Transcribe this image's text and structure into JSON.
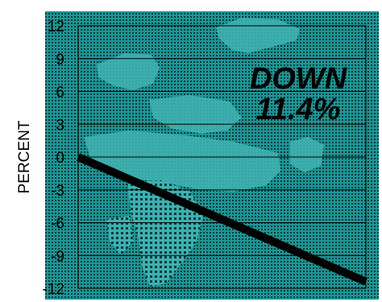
{
  "chart_data": {
    "type": "line",
    "ylabel": "PERCENT",
    "yticks": [
      12,
      9,
      6,
      3,
      0,
      -3,
      -6,
      -9,
      -12
    ],
    "ytick_labels": [
      "12",
      "9",
      "6",
      "3",
      "0",
      "-3",
      "-6",
      "-9",
      "-12"
    ],
    "ylim": [
      -12,
      12
    ],
    "grid": true,
    "series": [
      {
        "x": [
          0,
          1
        ],
        "y": [
          0,
          -11.4
        ]
      }
    ],
    "annotation": {
      "line1": "DOWN",
      "line2": "11.4%"
    }
  },
  "colors": {
    "background": "#1f9595",
    "dots": "#0b3b3b",
    "map": "#3fb0b0",
    "line": "#000000",
    "grid": "#000000"
  }
}
